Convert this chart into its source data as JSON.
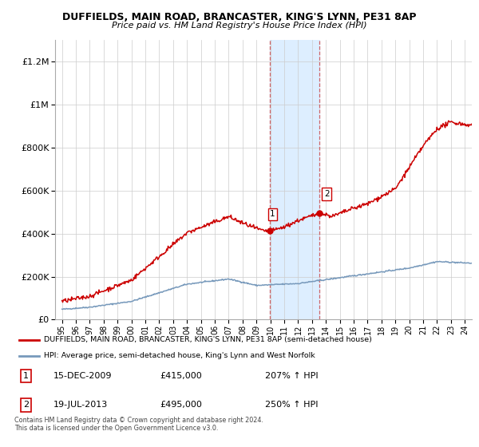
{
  "title": "DUFFIELDS, MAIN ROAD, BRANCASTER, KING'S LYNN, PE31 8AP",
  "subtitle": "Price paid vs. HM Land Registry's House Price Index (HPI)",
  "red_label": "DUFFIELDS, MAIN ROAD, BRANCASTER, KING'S LYNN, PE31 8AP (semi-detached house)",
  "blue_label": "HPI: Average price, semi-detached house, King's Lynn and West Norfolk",
  "footnote": "Contains HM Land Registry data © Crown copyright and database right 2024.\nThis data is licensed under the Open Government Licence v3.0.",
  "sale1_label": "1",
  "sale1_date": "15-DEC-2009",
  "sale1_price": "£415,000",
  "sale1_hpi": "207% ↑ HPI",
  "sale2_label": "2",
  "sale2_date": "19-JUL-2013",
  "sale2_price": "£495,000",
  "sale2_hpi": "250% ↑ HPI",
  "sale1_year": 2009.96,
  "sale2_year": 2013.55,
  "sale1_price_val": 415000,
  "sale2_price_val": 495000,
  "red_color": "#cc0000",
  "blue_color": "#7799bb",
  "highlight_color": "#ddeeff",
  "marker_color": "#cc0000",
  "ylim_max": 1300000,
  "xlim_start": 1994.5,
  "xlim_end": 2024.5
}
